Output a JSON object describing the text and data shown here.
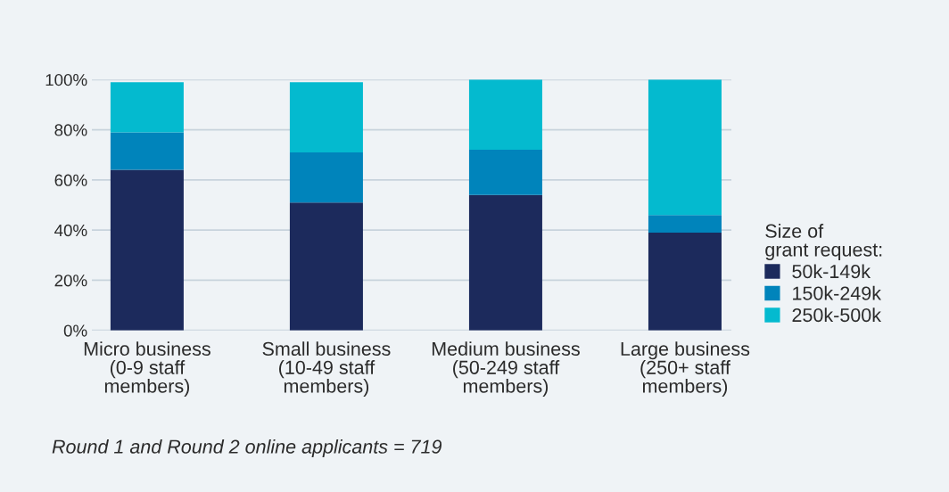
{
  "chart_data": {
    "type": "bar",
    "stacked": true,
    "categories": [
      "Micro business\n(0-9 staff\nmembers)",
      "Small business\n(10-49 staff\nmembers)",
      "Medium business\n(50-249 staff\nmembers)",
      "Large business\n(250+ staff\nmembers)"
    ],
    "series": [
      {
        "name": "50k-149k",
        "color": "#1c2a5c",
        "values": [
          64,
          51,
          54,
          39
        ]
      },
      {
        "name": "150k-249k",
        "color": "#0084bb",
        "values": [
          15,
          20,
          18,
          7
        ]
      },
      {
        "name": "250k-500k",
        "color": "#04bacf",
        "values": [
          20,
          28,
          28,
          54
        ]
      }
    ],
    "ylim": [
      0,
      100
    ],
    "yticks": [
      {
        "value": 0,
        "label": "0%"
      },
      {
        "value": 20,
        "label": "20%"
      },
      {
        "value": 40,
        "label": "40%"
      },
      {
        "value": 60,
        "label": "60%"
      },
      {
        "value": 80,
        "label": "80%"
      },
      {
        "value": 100,
        "label": "100%"
      }
    ],
    "grid": "y",
    "legend": "right",
    "legend_title": "Size of\ngrant request:",
    "annotations": [
      "Round 1 and Round 2 online applicants = 719"
    ]
  }
}
